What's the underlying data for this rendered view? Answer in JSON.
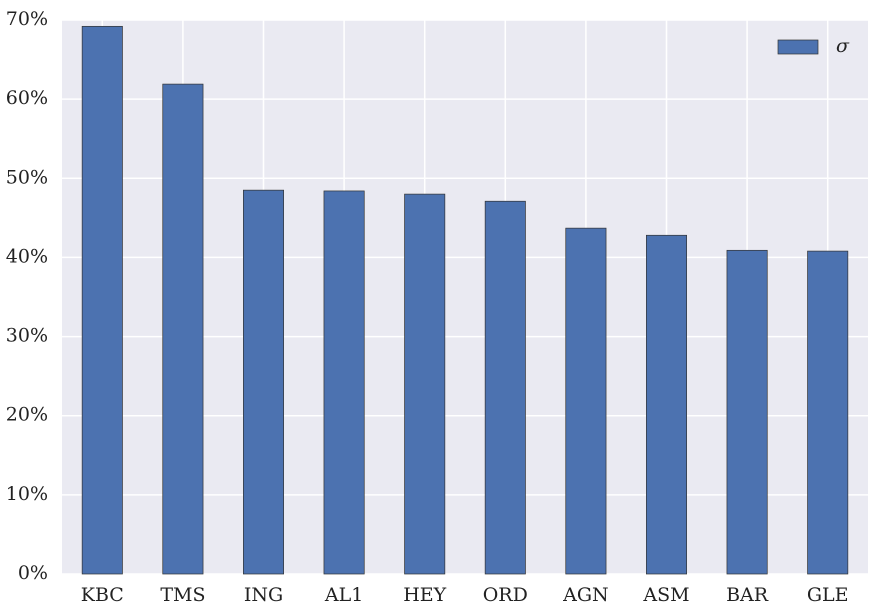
{
  "chart_data": {
    "type": "bar",
    "categories": [
      "KBC",
      "TMS",
      "ING",
      "AL1",
      "HEY",
      "ORD",
      "AGN",
      "ASM",
      "BAR",
      "GLE"
    ],
    "series": [
      {
        "name": "σ",
        "color": "#4c72b0",
        "values": [
          69.2,
          61.9,
          48.5,
          48.4,
          48.0,
          47.1,
          43.7,
          42.8,
          40.9,
          40.8
        ]
      }
    ],
    "ylim": [
      0,
      70
    ],
    "yticks": [
      {
        "value": 0,
        "label": "0%"
      },
      {
        "value": 10,
        "label": "10%"
      },
      {
        "value": 20,
        "label": "20%"
      },
      {
        "value": 30,
        "label": "30%"
      },
      {
        "value": 40,
        "label": "40%"
      },
      {
        "value": 50,
        "label": "50%"
      },
      {
        "value": 60,
        "label": "60%"
      },
      {
        "value": 70,
        "label": "70%"
      }
    ],
    "grid": true,
    "legend": "upper-right"
  }
}
